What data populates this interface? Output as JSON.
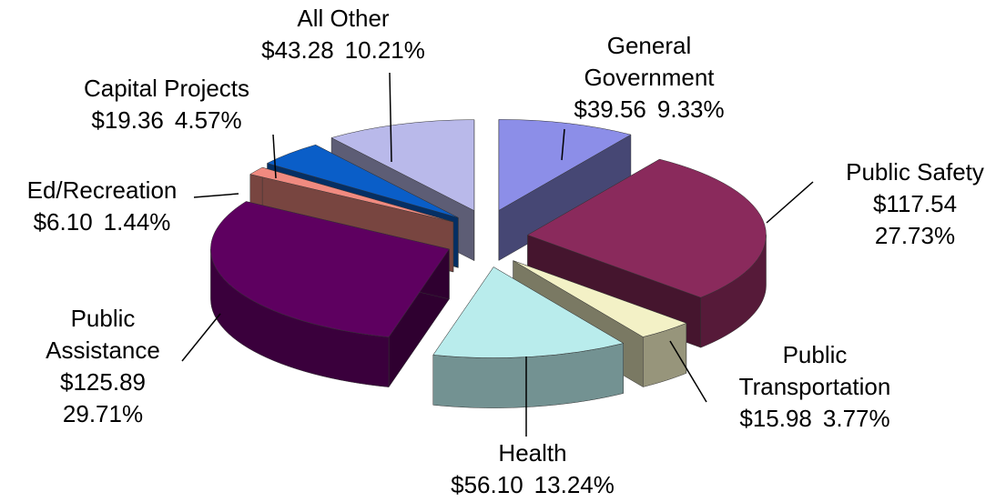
{
  "chart_data": {
    "type": "pie",
    "categories": [
      "General Government",
      "Public Safety",
      "Public Transportation",
      "Health",
      "Public Assistance",
      "Ed/Recreation",
      "Capital Projects",
      "All Other"
    ],
    "values": [
      39.56,
      117.54,
      15.98,
      56.1,
      125.89,
      6.1,
      19.36,
      43.28
    ],
    "value_labels": [
      "$39.56",
      "$117.54",
      "$15.98",
      "$56.10",
      "$125.89",
      "$6.10",
      "$19.36",
      "$43.28"
    ],
    "percents": [
      9.33,
      27.73,
      3.77,
      13.24,
      29.71,
      1.44,
      4.57,
      10.21
    ],
    "percent_labels": [
      "9.33%",
      "27.73%",
      "3.77%",
      "13.24%",
      "29.71%",
      "1.44%",
      "4.57%",
      "10.21%"
    ],
    "colors": [
      "#8c8ee8",
      "#8a2a5c",
      "#f3f1c6",
      "#b9ecec",
      "#5e0060",
      "#f08a80",
      "#0a5ec8",
      "#b9b9ea"
    ]
  }
}
